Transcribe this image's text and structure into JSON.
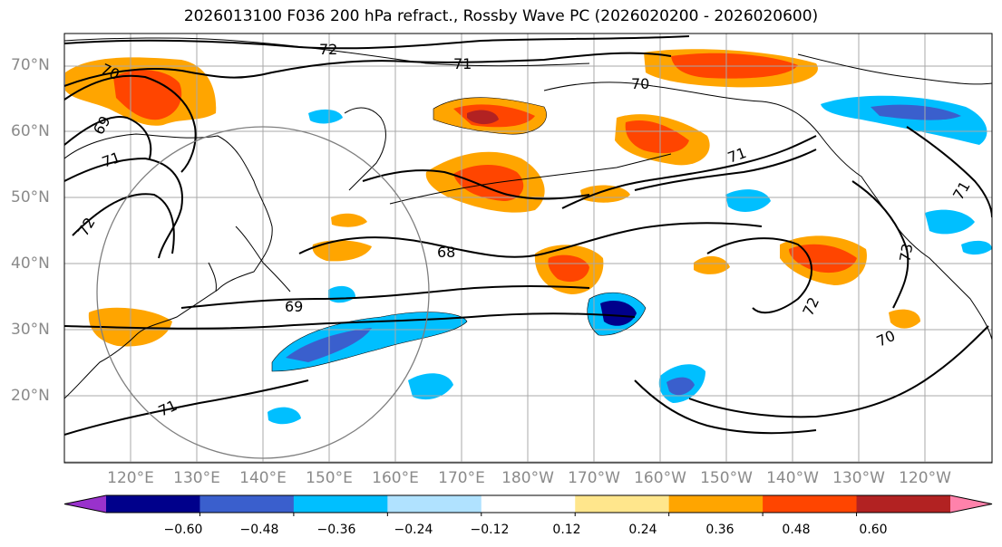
{
  "title": "2026013100 F036 200 hPa refract., Rossby Wave PC (2026020200 - 2026020600)",
  "lat_labels": [
    "70°N",
    "60°N",
    "50°N",
    "40°N",
    "30°N",
    "20°N"
  ],
  "lon_labels": [
    "120°E",
    "130°E",
    "140°E",
    "150°E",
    "160°E",
    "170°E",
    "180°W",
    "170°W",
    "160°W",
    "150°W",
    "140°W",
    "130°W",
    "120°W"
  ],
  "contour_labels": [
    "72",
    "71",
    "70",
    "70",
    "69",
    "71",
    "72",
    "68",
    "69",
    "71",
    "71",
    "73",
    "72",
    "70",
    "71"
  ],
  "colorbar": {
    "ticks": [
      "−0.60",
      "−0.48",
      "−0.36",
      "−0.24",
      "−0.12",
      "0.12",
      "0.24",
      "0.36",
      "0.48",
      "0.60"
    ],
    "colors": [
      "#9932cc",
      "#00008b",
      "#3a5fcd",
      "#00bfff",
      "#b0e2ff",
      "#ffffff",
      "#ffe68c",
      "#ffa500",
      "#ff4500",
      "#b22222",
      "#ff82ab"
    ]
  }
}
